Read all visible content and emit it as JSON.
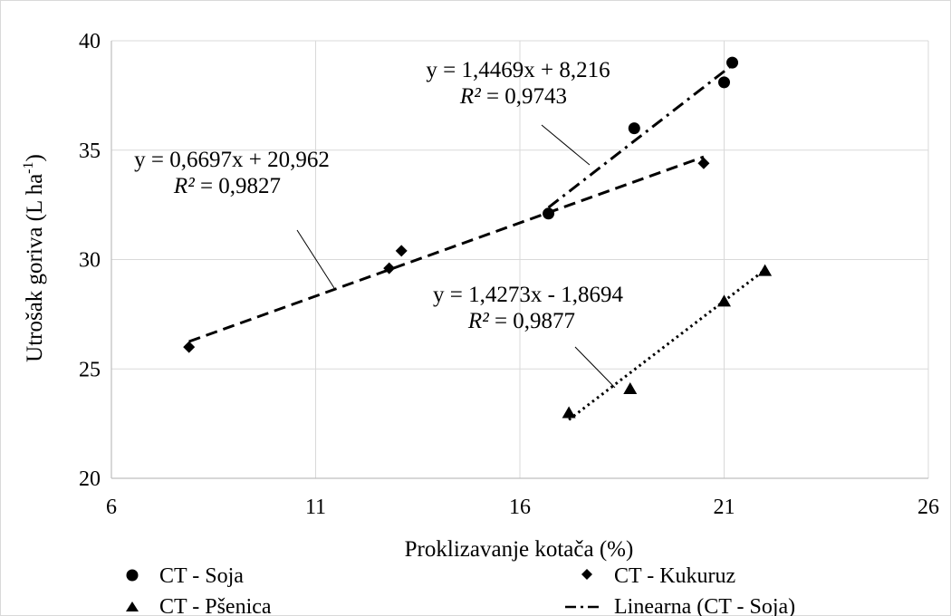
{
  "chart_data": {
    "type": "scatter",
    "xlabel": "Proklizavanje kotača (%)",
    "ylabel_main": "Utrošak goriva (L ha",
    "ylabel_sup": "-1",
    "ylabel_close": ")",
    "xlim": [
      6,
      26
    ],
    "ylim": [
      20,
      40
    ],
    "xticks": [
      6,
      11,
      16,
      21,
      26
    ],
    "yticks": [
      20,
      25,
      30,
      35,
      40
    ],
    "grid": true,
    "legend_position": "bottom",
    "series": [
      {
        "name": "CT - Soja",
        "marker": "circle",
        "points": [
          [
            16.7,
            32.1
          ],
          [
            18.8,
            36.0
          ],
          [
            21.0,
            38.1
          ],
          [
            21.2,
            39.0
          ]
        ],
        "trend": {
          "slope": 1.4469,
          "intercept": 8.216,
          "x_range": [
            16.7,
            21.2
          ],
          "dash": "dashdot"
        },
        "equation": "y = 1,4469x + 8,216",
        "r2_label": "R²",
        "r2_value": " = 0,9743"
      },
      {
        "name": "CT - Kukuruz",
        "marker": "diamond",
        "points": [
          [
            7.9,
            26.0
          ],
          [
            12.8,
            29.6
          ],
          [
            13.1,
            30.4
          ],
          [
            20.5,
            34.4
          ]
        ],
        "trend": {
          "slope": 0.6697,
          "intercept": 20.962,
          "x_range": [
            7.9,
            20.5
          ],
          "dash": "dash"
        },
        "equation": "y = 0,6697x + 20,962",
        "r2_label": "R²",
        "r2_value": " = 0,9827"
      },
      {
        "name": "CT - Pšenica",
        "marker": "triangle",
        "points": [
          [
            17.2,
            23.0
          ],
          [
            18.7,
            24.1
          ],
          [
            21.0,
            28.1
          ],
          [
            22.0,
            29.5
          ]
        ],
        "trend": {
          "slope": 1.4273,
          "intercept": -1.8694,
          "x_range": [
            17.2,
            22.0
          ],
          "dash": "dot"
        },
        "equation": "y = 1,4273x - 1,8694",
        "r2_label": "R²",
        "r2_value": " = 0,9877"
      }
    ],
    "legend": [
      {
        "label": "CT - Soja",
        "marker": "circle"
      },
      {
        "label": "CT - Kukuruz",
        "marker": "diamond"
      },
      {
        "label": "CT - Pšenica",
        "marker": "triangle"
      },
      {
        "label": "Linearna (CT - Soja)",
        "marker": "dashdot-line"
      }
    ]
  }
}
